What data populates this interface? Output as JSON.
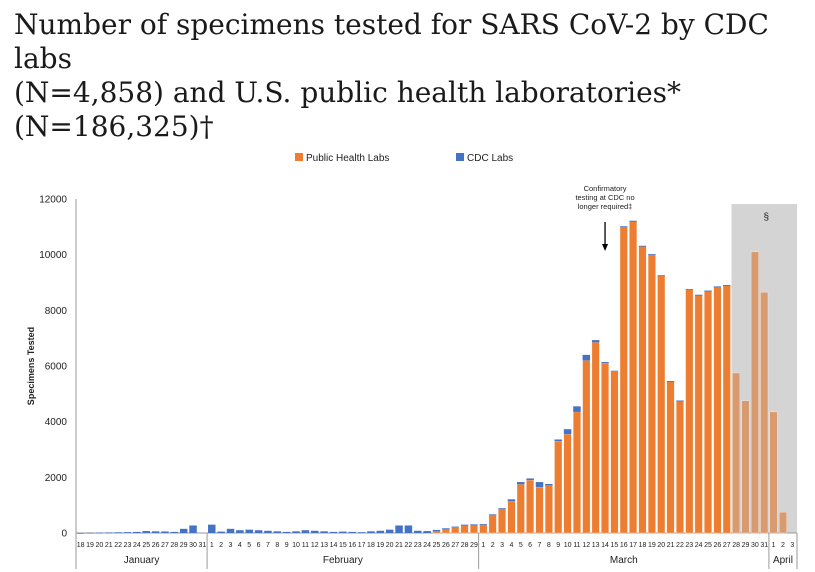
{
  "title_lines": [
    "Number of specimens tested for SARS CoV-2 by CDC labs",
    "(N=4,858) and U.S. public health laboratories*",
    "(N=186,325)†"
  ],
  "chart_data": {
    "type": "bar",
    "stacked": true,
    "ylabel": "Specimens Tested",
    "ylim": [
      0,
      12000
    ],
    "yticks": [
      0,
      2000,
      4000,
      6000,
      8000,
      10000,
      12000
    ],
    "legend_position": "top-center",
    "categories": [
      "18",
      "19",
      "20",
      "21",
      "22",
      "23",
      "24",
      "25",
      "26",
      "27",
      "28",
      "29",
      "30",
      "31",
      "1",
      "2",
      "3",
      "4",
      "5",
      "6",
      "7",
      "8",
      "9",
      "10",
      "11",
      "12",
      "13",
      "14",
      "15",
      "16",
      "17",
      "18",
      "19",
      "20",
      "21",
      "22",
      "23",
      "24",
      "25",
      "26",
      "27",
      "28",
      "29",
      "1",
      "2",
      "3",
      "4",
      "5",
      "6",
      "7",
      "8",
      "9",
      "10",
      "11",
      "12",
      "13",
      "14",
      "15",
      "16",
      "17",
      "18",
      "19",
      "20",
      "21",
      "22",
      "23",
      "24",
      "25",
      "26",
      "27",
      "28",
      "29",
      "30",
      "31",
      "1",
      "2",
      "3"
    ],
    "months": [
      {
        "name": "January",
        "start": 0,
        "end": 13
      },
      {
        "name": "February",
        "start": 14,
        "end": 42
      },
      {
        "name": "March",
        "start": 43,
        "end": 73
      },
      {
        "name": "April",
        "start": 74,
        "end": 76
      }
    ],
    "series": [
      {
        "name": "Public Health Labs",
        "color": "#ED7D31",
        "values": [
          0,
          0,
          0,
          0,
          0,
          0,
          0,
          0,
          0,
          0,
          0,
          0,
          0,
          0,
          0,
          0,
          0,
          0,
          0,
          0,
          0,
          0,
          0,
          0,
          0,
          0,
          0,
          0,
          0,
          0,
          0,
          0,
          0,
          0,
          0,
          0,
          0,
          0,
          50,
          130,
          200,
          280,
          300,
          300,
          650,
          850,
          1150,
          1750,
          1900,
          1650,
          1700,
          3300,
          3550,
          4350,
          6200,
          6850,
          6100,
          5800,
          11000,
          11200,
          10300,
          10000,
          9250,
          5450,
          4750,
          8750,
          8550,
          8700,
          8850,
          8900,
          5750,
          4750,
          10100,
          8650,
          4350,
          750,
          0
        ]
      },
      {
        "name": "CDC Labs",
        "color": "#4472C4",
        "values": [
          5,
          10,
          15,
          20,
          25,
          30,
          40,
          70,
          60,
          55,
          40,
          150,
          270,
          0,
          300,
          50,
          150,
          100,
          120,
          100,
          80,
          60,
          40,
          60,
          100,
          80,
          60,
          40,
          50,
          40,
          30,
          60,
          80,
          120,
          270,
          270,
          80,
          70,
          60,
          40,
          30,
          20,
          10,
          20,
          20,
          40,
          60,
          80,
          60,
          180,
          60,
          60,
          180,
          200,
          200,
          80,
          40,
          30,
          20,
          20,
          20,
          20,
          10,
          10,
          10,
          10,
          10,
          10,
          10,
          10,
          0,
          0,
          0,
          0,
          0,
          0,
          0
        ]
      }
    ],
    "shaded_region": {
      "start": 70,
      "end": 76,
      "label": "§"
    },
    "annotations": [
      {
        "text_lines": [
          "Confirmatory",
          "testing at CDC no",
          "longer required‡"
        ],
        "category_index": 56
      }
    ]
  }
}
